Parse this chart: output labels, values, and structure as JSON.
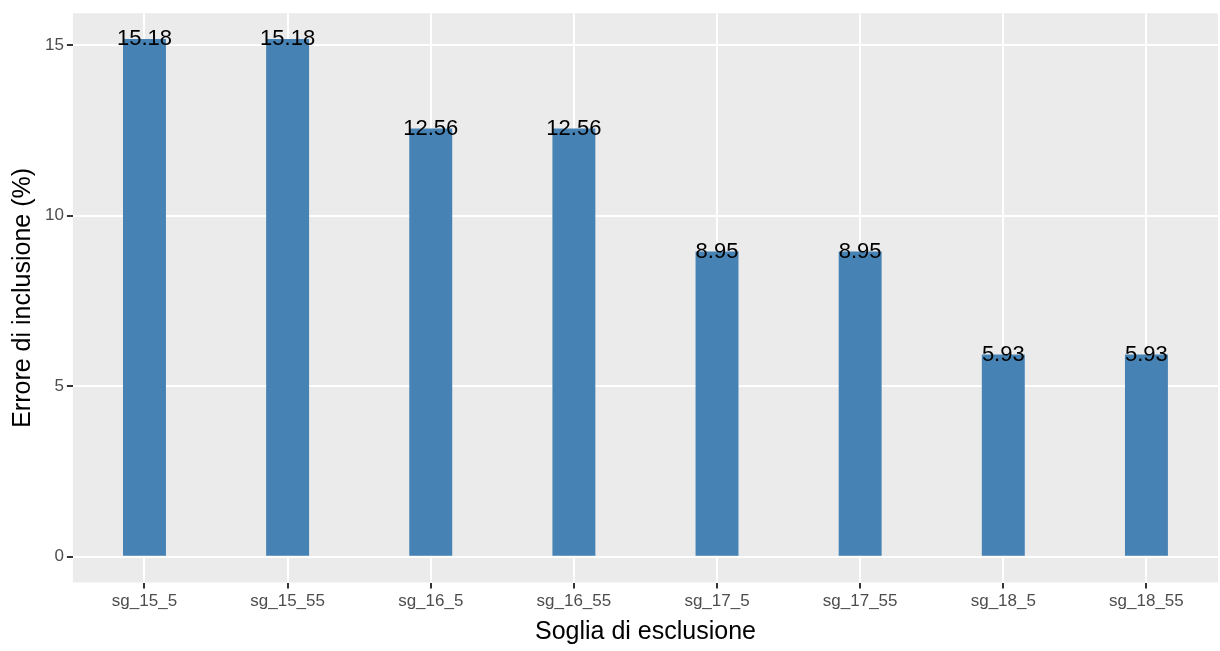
{
  "chart_data": {
    "type": "bar",
    "xlabel": "Soglia di esclusione",
    "ylabel": "Errore di inclusione (%)",
    "categories": [
      "sg_15_5",
      "sg_15_55",
      "sg_16_5",
      "sg_16_55",
      "sg_17_5",
      "sg_17_55",
      "sg_18_5",
      "sg_18_55"
    ],
    "values": [
      15.18,
      15.18,
      12.56,
      12.56,
      8.95,
      8.95,
      5.93,
      5.93
    ],
    "color": "#4682b4",
    "ylim": [
      -0.76,
      15.94
    ],
    "yticks": [
      0,
      5,
      10,
      15
    ],
    "grid": true,
    "data_labels": true,
    "legend": false
  }
}
